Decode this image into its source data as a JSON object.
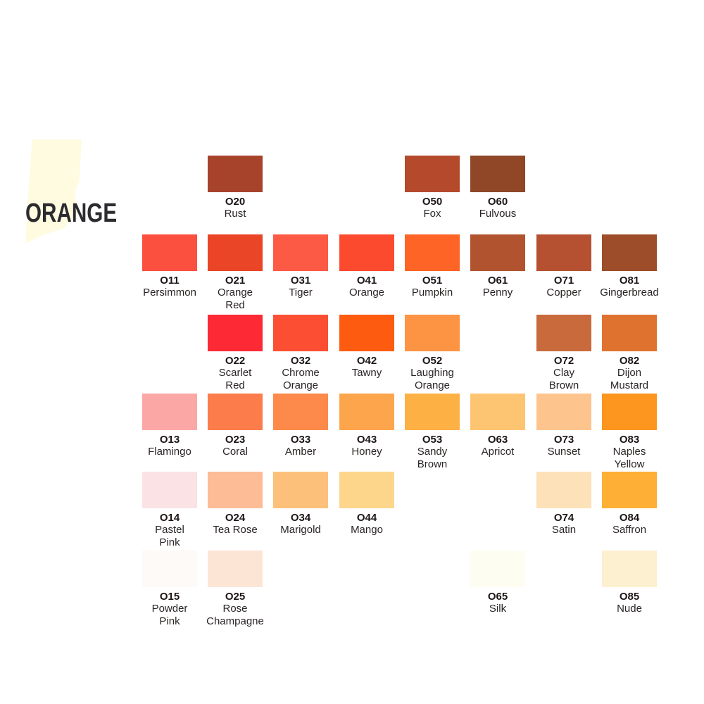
{
  "title": "ORANGE",
  "swatches": [
    {
      "code": "O20",
      "name": "Rust",
      "color": "#a8432b"
    },
    {
      "code": "O50",
      "name": "Fox",
      "color": "#b5492c"
    },
    {
      "code": "O60",
      "name": "Fulvous",
      "color": "#8f4728"
    },
    {
      "code": "O11",
      "name": "Persimmon",
      "color": "#fb4f40"
    },
    {
      "code": "O21",
      "name": "Orange\nRed",
      "color": "#ea4526"
    },
    {
      "code": "O31",
      "name": "Tiger",
      "color": "#fc5a44"
    },
    {
      "code": "O41",
      "name": "Orange",
      "color": "#fc4a2e"
    },
    {
      "code": "O51",
      "name": "Pumpkin",
      "color": "#fd6425"
    },
    {
      "code": "O61",
      "name": "Penny",
      "color": "#b2532f"
    },
    {
      "code": "O71",
      "name": "Copper",
      "color": "#b55130"
    },
    {
      "code": "O81",
      "name": "Gingerbread",
      "color": "#9d4d29"
    },
    {
      "code": "O22",
      "name": "Scarlet\nRed",
      "color": "#fd2a35"
    },
    {
      "code": "O32",
      "name": "Chrome\nOrange",
      "color": "#fb4e33"
    },
    {
      "code": "O42",
      "name": "Tawny",
      "color": "#fd5b10"
    },
    {
      "code": "O52",
      "name": "Laughing\nOrange",
      "color": "#fd9443"
    },
    {
      "code": "O72",
      "name": "Clay\nBrown",
      "color": "#c96a3c"
    },
    {
      "code": "O82",
      "name": "Dijon\nMustard",
      "color": "#e0722f"
    },
    {
      "code": "O13",
      "name": "Flamingo",
      "color": "#fba7a5"
    },
    {
      "code": "O23",
      "name": "Coral",
      "color": "#fd7c4c"
    },
    {
      "code": "O33",
      "name": "Amber",
      "color": "#fd8a4a"
    },
    {
      "code": "O43",
      "name": "Honey",
      "color": "#fda54c"
    },
    {
      "code": "O53",
      "name": "Sandy\nBrown",
      "color": "#fdb145"
    },
    {
      "code": "O63",
      "name": "Apricot",
      "color": "#fdc472"
    },
    {
      "code": "O73",
      "name": "Sunset",
      "color": "#fdc48e"
    },
    {
      "code": "O83",
      "name": "Naples\nYellow",
      "color": "#fd961e"
    },
    {
      "code": "O14",
      "name": "Pastel\nPink",
      "color": "#fbe2e4"
    },
    {
      "code": "O24",
      "name": "Tea Rose",
      "color": "#fdbc96"
    },
    {
      "code": "O34",
      "name": "Marigold",
      "color": "#fdc07a"
    },
    {
      "code": "O44",
      "name": "Mango",
      "color": "#fdd68c"
    },
    {
      "code": "O74",
      "name": "Satin",
      "color": "#fde1b8"
    },
    {
      "code": "O84",
      "name": "Saffron",
      "color": "#fdb035"
    },
    {
      "code": "O15",
      "name": "Powder\nPink",
      "color": "#fefaf7"
    },
    {
      "code": "O25",
      "name": "Rose\nChampagne",
      "color": "#fde5d6"
    },
    {
      "code": "O65",
      "name": "Silk",
      "color": "#fefdf1"
    },
    {
      "code": "O85",
      "name": "Nude",
      "color": "#fdf0d0"
    }
  ]
}
